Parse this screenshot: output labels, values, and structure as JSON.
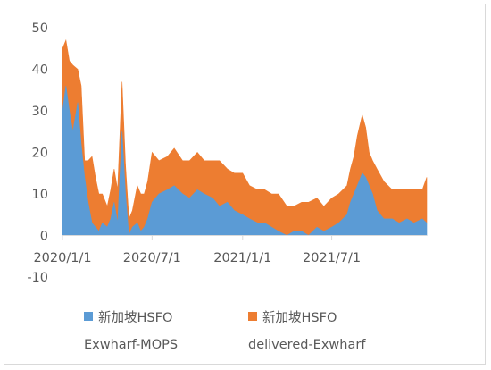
{
  "colors": {
    "series1": "#5b9bd5",
    "series2": "#ed7d31",
    "axis": "#d9d9d9",
    "text": "#595959"
  },
  "chart_data": {
    "type": "area",
    "stacked": true,
    "title": "",
    "xlabel": "",
    "ylabel": "",
    "ylim": [
      -10,
      50
    ],
    "yticks": [
      -10,
      0,
      10,
      20,
      30,
      40,
      50
    ],
    "xlim": [
      "2020/1/1",
      "2022/1/10"
    ],
    "xticks": [
      "2020/1/1",
      "2020/7/1",
      "2021/1/1",
      "2021/7/1"
    ],
    "grid": false,
    "legend_position": "bottom",
    "x": [
      "2020/1/1",
      "2020/1/8",
      "2020/1/15",
      "2020/1/22",
      "2020/2/1",
      "2020/2/8",
      "2020/2/15",
      "2020/2/22",
      "2020/3/1",
      "2020/3/8",
      "2020/3/15",
      "2020/3/22",
      "2020/4/1",
      "2020/4/8",
      "2020/4/15",
      "2020/4/22",
      "2020/5/1",
      "2020/5/8",
      "2020/5/15",
      "2020/5/22",
      "2020/6/1",
      "2020/6/8",
      "2020/6/15",
      "2020/6/22",
      "2020/7/1",
      "2020/7/15",
      "2020/8/1",
      "2020/8/15",
      "2020/9/1",
      "2020/9/15",
      "2020/10/1",
      "2020/10/15",
      "2020/11/1",
      "2020/11/15",
      "2020/12/1",
      "2020/12/15",
      "2021/1/1",
      "2021/1/15",
      "2021/2/1",
      "2021/2/15",
      "2021/3/1",
      "2021/3/15",
      "2021/4/1",
      "2021/4/15",
      "2021/5/1",
      "2021/5/15",
      "2021/6/1",
      "2021/6/15",
      "2021/7/1",
      "2021/7/15",
      "2021/8/1",
      "2021/8/8",
      "2021/8/15",
      "2021/8/22",
      "2021/9/1",
      "2021/9/8",
      "2021/9/15",
      "2021/9/22",
      "2021/10/1",
      "2021/10/15",
      "2021/11/1",
      "2021/11/15",
      "2021/12/1",
      "2021/12/15",
      "2022/1/1",
      "2022/1/10"
    ],
    "series": [
      {
        "name": "新加坡HSFO Exwharf-MOPS",
        "values": [
          30,
          36,
          30,
          25,
          32,
          22,
          14,
          8,
          3,
          2,
          1,
          3,
          2,
          4,
          8,
          3,
          25,
          10,
          0,
          2,
          3,
          1,
          2,
          4,
          8,
          10,
          11,
          12,
          10,
          9,
          11,
          10,
          9,
          7,
          8,
          6,
          5,
          4,
          3,
          3,
          2,
          1,
          0,
          1,
          1,
          0,
          2,
          1,
          2,
          3,
          5,
          8,
          10,
          12,
          15,
          14,
          12,
          10,
          6,
          4,
          4,
          3,
          4,
          3,
          4,
          3
        ]
      },
      {
        "name": "新加坡HSFO delivered-Exwharf",
        "values": [
          15,
          11,
          12,
          16,
          8,
          14,
          4,
          10,
          16,
          12,
          9,
          7,
          5,
          7,
          8,
          8,
          12,
          7,
          4,
          4,
          9,
          9,
          8,
          9,
          12,
          8,
          8,
          9,
          8,
          9,
          9,
          8,
          9,
          11,
          8,
          9,
          10,
          8,
          8,
          8,
          8,
          9,
          7,
          6,
          7,
          8,
          7,
          6,
          7,
          7,
          7,
          8,
          9,
          12,
          14,
          12,
          8,
          8,
          10,
          9,
          7,
          8,
          7,
          8,
          7,
          11
        ]
      }
    ]
  },
  "legend": {
    "items": [
      {
        "line1": "新加坡HSFO",
        "line2": "Exwharf-MOPS"
      },
      {
        "line1": "新加坡HSFO",
        "line2": "delivered-Exwharf"
      }
    ]
  }
}
